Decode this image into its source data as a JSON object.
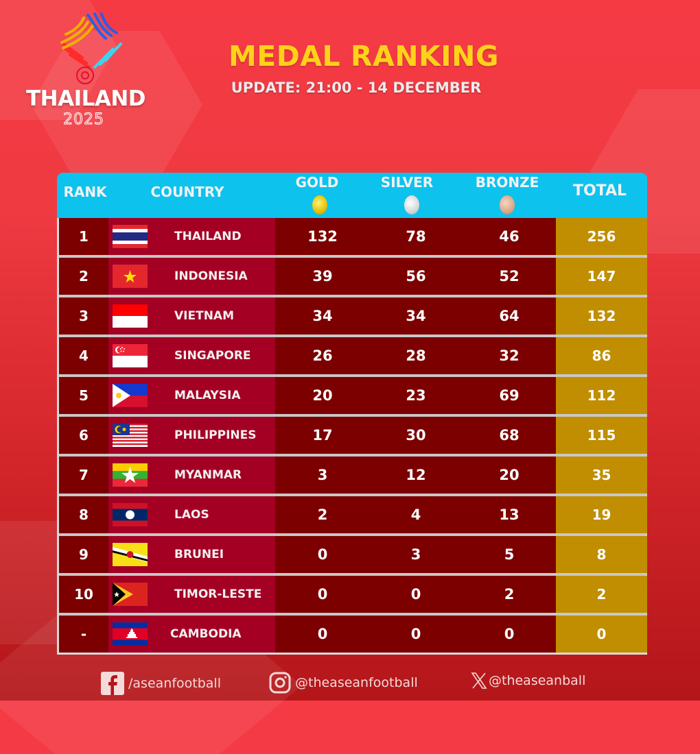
{
  "header": {
    "logo_wordmark": "THAILAND",
    "logo_year": "2025",
    "title": "MEDAL RANKING",
    "subtitle": "UPDATE: 21:00 - 14 DECEMBER"
  },
  "table": {
    "columns": {
      "rank": "RANK",
      "country": "COUNTRY",
      "gold": "GOLD",
      "silver": "SILVER",
      "bronze": "BRONZE",
      "total": "TOTAL"
    },
    "rows": [
      {
        "rank": "1",
        "flag": "thailand-flag",
        "country": "THAILAND",
        "gold": "132",
        "silver": "78",
        "bronze": "46",
        "total": "256"
      },
      {
        "rank": "2",
        "flag": "vietnam-flag",
        "country": "INDONESIA",
        "gold": "39",
        "silver": "56",
        "bronze": "52",
        "total": "147"
      },
      {
        "rank": "3",
        "flag": "indonesia-flag",
        "country": "VIETNAM",
        "gold": "34",
        "silver": "34",
        "bronze": "64",
        "total": "132"
      },
      {
        "rank": "4",
        "flag": "singapore-flag",
        "country": "SINGAPORE",
        "gold": "26",
        "silver": "28",
        "bronze": "32",
        "total": "86"
      },
      {
        "rank": "5",
        "flag": "philippines-flag",
        "country": "MALAYSIA",
        "gold": "20",
        "silver": "23",
        "bronze": "69",
        "total": "112"
      },
      {
        "rank": "6",
        "flag": "malaysia-flag",
        "country": "PHILIPPINES",
        "gold": "17",
        "silver": "30",
        "bronze": "68",
        "total": "115"
      },
      {
        "rank": "7",
        "flag": "myanmar-flag",
        "country": "MYANMAR",
        "gold": "3",
        "silver": "12",
        "bronze": "20",
        "total": "35"
      },
      {
        "rank": "8",
        "flag": "laos-flag",
        "country": "LAOS",
        "gold": "2",
        "silver": "4",
        "bronze": "13",
        "total": "19"
      },
      {
        "rank": "9",
        "flag": "brunei-flag",
        "country": "BRUNEI",
        "gold": "0",
        "silver": "3",
        "bronze": "5",
        "total": "8"
      },
      {
        "rank": "10",
        "flag": "timor-leste-flag",
        "country": "TIMOR-LESTE",
        "gold": "0",
        "silver": "0",
        "bronze": "2",
        "total": "2"
      },
      {
        "rank": "-",
        "flag": "cambodia-flag",
        "country": "CAMBODIA",
        "gold": "0",
        "silver": "0",
        "bronze": "0",
        "total": "0"
      }
    ]
  },
  "footer": {
    "facebook": "/aseanfootball",
    "instagram": "@theaseanfootball",
    "x": "@theaseanball"
  },
  "colors": {
    "header_bg": "#0ec2ee",
    "rank_bg": "#7c0000",
    "country_bg": "#a30024",
    "medal_bg": "#7c0000",
    "total_bg": "#c08e00",
    "title": "#ffd21a"
  }
}
